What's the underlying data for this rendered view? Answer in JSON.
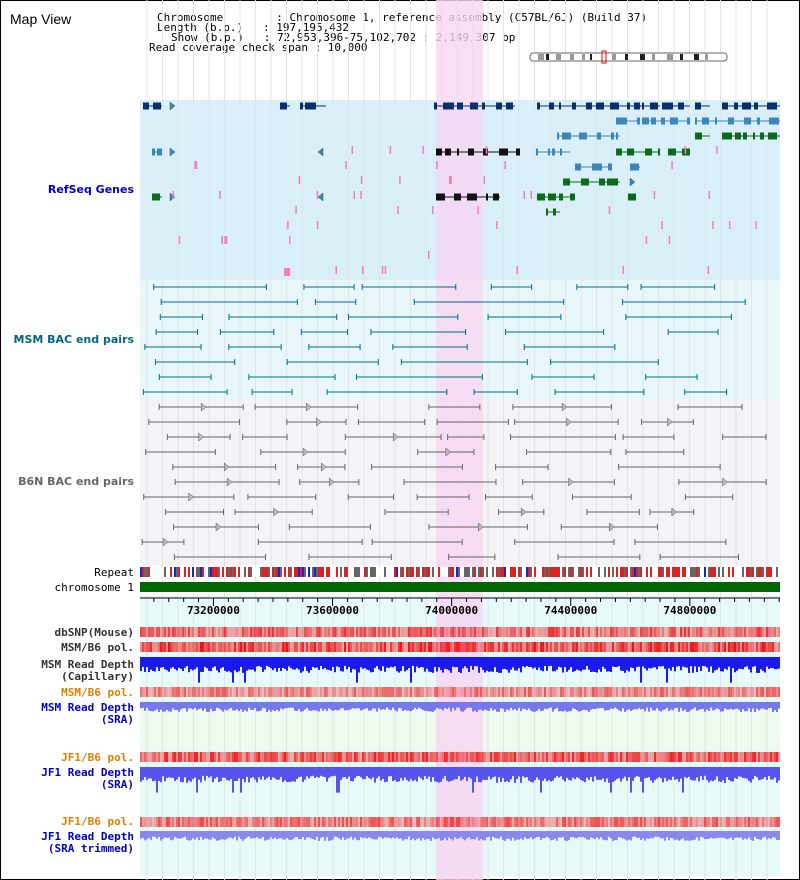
{
  "header": {
    "title": "Map View",
    "lines": [
      "Chromosome        : Chromosome 1, reference assembly (C57BL/6J) (Build 37)",
      "Length (b.p.)   : 197,195,432",
      "Show (b.p.)   : 72,953,396-75,102,702 : 2,149,307 bp",
      "Read coverage check span : 10,000"
    ]
  },
  "tracks": {
    "refseq": "RefSeq Genes",
    "msm_bac": "MSM BAC end pairs",
    "b6n_bac": "B6N BAC end pairs",
    "repeat": "Repeat",
    "chromosome": "chromosome 1",
    "dbsnp": "dbSNP(Mouse)",
    "msm_b6_pol_1": "MSM/B6 pol.",
    "msm_read_depth_cap": "MSM Read Depth\n(Capillary)",
    "msm_b6_pol_2": "MSM/B6 pol.",
    "msm_read_depth_sra": "MSM Read Depth\n(SRA)",
    "jf1_b6_pol_1": "JF1/B6 pol.",
    "jf1_read_depth_sra": "JF1 Read Depth\n(SRA)",
    "jf1_b6_pol_2": "JF1/B6 pol.",
    "jf1_read_depth_trim": "JF1 Read Depth\n(SRA trimmed)"
  },
  "axis": {
    "ticks": [
      73200000,
      73600000,
      74000000,
      74400000,
      74800000
    ],
    "range": [
      72953396,
      75102702
    ]
  },
  "colors": {
    "refseq_label": "#0000cc",
    "msm_label": "#006688",
    "b6n_label": "#666666",
    "pol_orange": "#e08000",
    "depth_blue": "#0000cc",
    "highlight": "#f7d6f3",
    "chrom_green": "#006600"
  }
}
